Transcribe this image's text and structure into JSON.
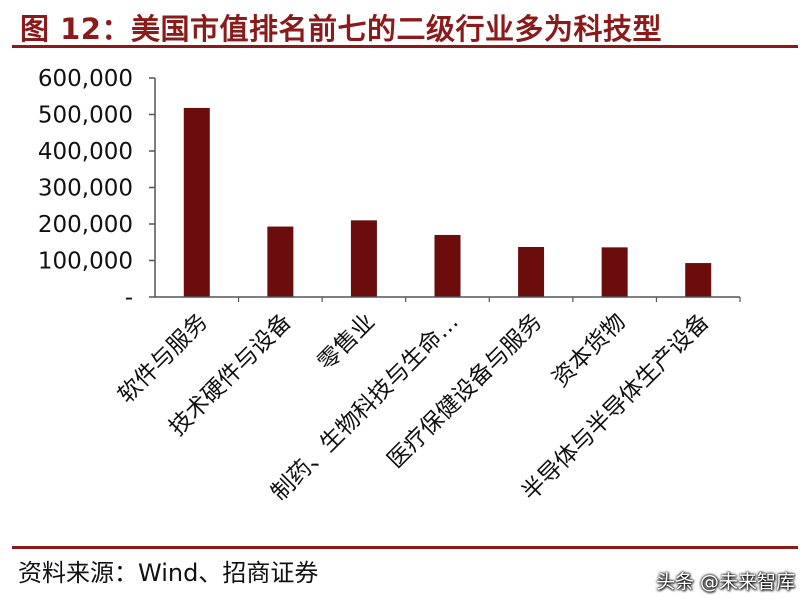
{
  "figure_title": "图 12：美国市值排名前七的二级行业多为科技型",
  "source_text": "资料来源：Wind、招商证券",
  "watermark": "头条 @未来智库",
  "colors": {
    "bar": "#6b0d0d",
    "title": "#8b1a1a",
    "rule": "#8b1a1a",
    "axis": "#555555"
  },
  "chart_data": {
    "type": "bar",
    "categories": [
      "软件与服务",
      "技术硬件与设备",
      "零售业",
      "制药、生物科技与生命…",
      "医疗保健设备与服务",
      "资本货物",
      "半导体与半导体生产设备"
    ],
    "values": [
      518000,
      193000,
      210000,
      170000,
      137000,
      136000,
      93000
    ],
    "ylim": [
      0,
      600000
    ],
    "yticks": [
      0,
      100000,
      200000,
      300000,
      400000,
      500000,
      600000
    ],
    "ytick_labels": [
      "-",
      "100,000",
      "200,000",
      "300,000",
      "400,000",
      "500,000",
      "600,000"
    ],
    "title": "",
    "xlabel": "",
    "ylabel": "",
    "grid": false,
    "legend": "none"
  }
}
